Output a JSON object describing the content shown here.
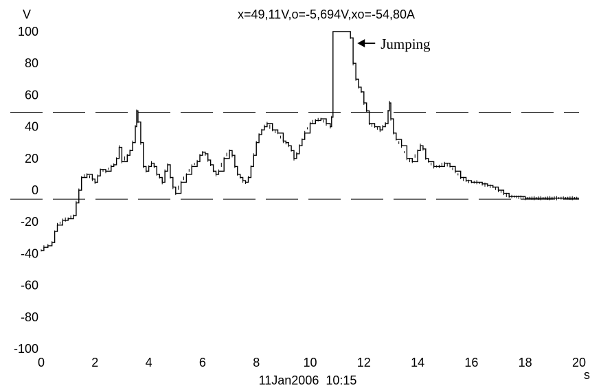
{
  "chart_data": {
    "type": "line",
    "title": "x=49,11V,o=-5,694V,xo=-54,80A",
    "ylabel": "V",
    "xlabel": "s",
    "date_label": "11Jan2006  10:15",
    "xlim": [
      0,
      20
    ],
    "ylim": [
      -100,
      100
    ],
    "x_ticks": [
      "0",
      "2",
      "4",
      "6",
      "8",
      "10",
      "12",
      "14",
      "16",
      "18",
      "20"
    ],
    "y_ticks": [
      "100",
      "80",
      "60",
      "40",
      "20",
      "0",
      "-20",
      "-40",
      "-60",
      "-80",
      "-100"
    ],
    "grid": false,
    "reference_lines": [
      {
        "value": 49.11,
        "style": "dashed"
      },
      {
        "value": -5.694,
        "style": "dashed"
      }
    ],
    "annotations": [
      {
        "text": "Jumping",
        "x": 11.5,
        "y": 100
      }
    ],
    "series": [
      {
        "color": "#000000",
        "x": [
          0,
          0.1,
          0.25,
          0.4,
          0.5,
          0.6,
          0.8,
          1.0,
          1.2,
          1.3,
          1.4,
          1.5,
          1.7,
          1.9,
          2.0,
          2.1,
          2.2,
          2.4,
          2.6,
          2.7,
          2.8,
          2.9,
          3.0,
          3.2,
          3.3,
          3.4,
          3.5,
          3.55,
          3.6,
          3.7,
          3.8,
          3.9,
          4.0,
          4.1,
          4.2,
          4.3,
          4.4,
          4.5,
          4.6,
          4.7,
          4.8,
          4.9,
          5.0,
          5.2,
          5.4,
          5.6,
          5.8,
          5.9,
          6.0,
          6.1,
          6.2,
          6.3,
          6.4,
          6.5,
          6.6,
          6.8,
          7.0,
          7.1,
          7.2,
          7.3,
          7.4,
          7.5,
          7.6,
          7.7,
          7.8,
          7.9,
          8.0,
          8.1,
          8.2,
          8.3,
          8.4,
          8.6,
          8.8,
          9.0,
          9.1,
          9.2,
          9.3,
          9.4,
          9.5,
          9.6,
          9.7,
          9.8,
          10.0,
          10.2,
          10.4,
          10.6,
          10.75,
          10.8,
          10.85,
          11.0,
          11.2,
          11.4,
          11.5,
          11.6,
          11.7,
          11.8,
          11.9,
          12.0,
          12.1,
          12.2,
          12.4,
          12.6,
          12.7,
          12.8,
          12.9,
          12.95,
          13.0,
          13.1,
          13.2,
          13.4,
          13.6,
          13.8,
          14.0,
          14.1,
          14.2,
          14.3,
          14.4,
          14.6,
          14.8,
          15.0,
          15.2,
          15.4,
          15.6,
          15.8,
          16.0,
          16.2,
          16.4,
          16.6,
          16.8,
          17.0,
          17.2,
          17.4,
          17.6,
          18.0,
          18.5,
          19.0,
          19.5,
          20.0
        ],
        "y": [
          -38,
          -36,
          -35,
          -33,
          -26,
          -22,
          -19,
          -18,
          -16,
          -8,
          0,
          8,
          10,
          7,
          5,
          9,
          13,
          12,
          15,
          16,
          20,
          27,
          18,
          22,
          25,
          30,
          40,
          50,
          43,
          30,
          15,
          12,
          15,
          17,
          15,
          10,
          8,
          5,
          12,
          16,
          8,
          2,
          -2,
          5,
          10,
          15,
          18,
          22,
          24,
          23,
          19,
          16,
          12,
          10,
          12,
          20,
          25,
          22,
          15,
          10,
          8,
          6,
          5,
          8,
          15,
          22,
          30,
          35,
          38,
          40,
          42,
          38,
          36,
          31,
          30,
          28,
          25,
          20,
          23,
          28,
          32,
          36,
          42,
          44,
          45,
          42,
          40,
          46,
          100,
          100,
          100,
          100,
          96,
          80,
          70,
          65,
          62,
          55,
          50,
          42,
          40,
          38,
          40,
          42,
          50,
          55,
          45,
          36,
          32,
          28,
          20,
          18,
          25,
          28,
          26,
          20,
          18,
          15,
          15,
          17,
          15,
          12,
          8,
          6,
          5,
          5,
          4,
          3,
          2,
          0,
          -2,
          -4,
          -4,
          -5,
          -5,
          -5,
          -5,
          -5
        ]
      }
    ]
  }
}
